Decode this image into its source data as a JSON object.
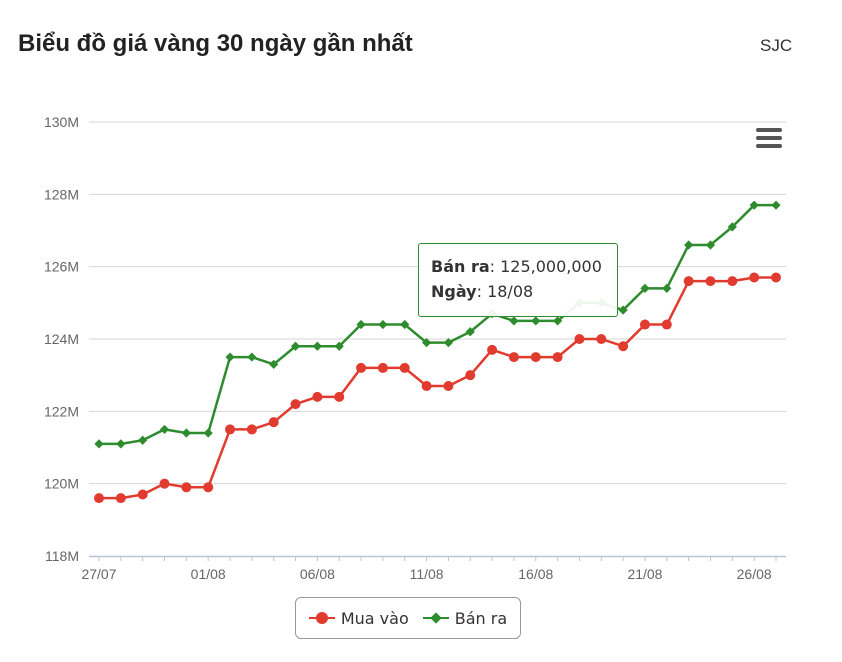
{
  "header": {
    "title": "Biểu đồ giá vàng 30 ngày gần nhất",
    "source": "SJC"
  },
  "tooltip": {
    "series_label": "Bán ra",
    "value": "125,000,000",
    "date_label": "Ngày",
    "date": "18/08"
  },
  "colors": {
    "buy": "#e03b2e",
    "sell": "#2e8b2e",
    "grid": "#d6d6d6",
    "axis": "#b8c4d6",
    "text": "#666666"
  },
  "chart_data": {
    "type": "line",
    "x": [
      "27/07",
      "28/07",
      "29/07",
      "30/07",
      "31/07",
      "01/08",
      "02/08",
      "03/08",
      "04/08",
      "05/08",
      "06/08",
      "07/08",
      "08/08",
      "09/08",
      "10/08",
      "11/08",
      "12/08",
      "13/08",
      "14/08",
      "15/08",
      "16/08",
      "17/08",
      "18/08",
      "19/08",
      "20/08",
      "21/08",
      "22/08",
      "23/08",
      "24/08",
      "25/08",
      "26/08",
      "27/08"
    ],
    "x_tick_labels": [
      "27/07",
      "01/08",
      "06/08",
      "11/08",
      "16/08",
      "21/08",
      "26/08"
    ],
    "y_tick_labels": [
      "118M",
      "120M",
      "122M",
      "124M",
      "126M",
      "128M",
      "130M"
    ],
    "ylim": [
      118000000,
      130000000
    ],
    "series": [
      {
        "name": "Mua vào",
        "values": [
          119600000,
          119600000,
          119700000,
          120000000,
          119900000,
          119900000,
          121500000,
          121500000,
          121700000,
          122200000,
          122400000,
          122400000,
          123200000,
          123200000,
          123200000,
          122700000,
          122700000,
          123000000,
          123700000,
          123500000,
          123500000,
          123500000,
          124000000,
          124000000,
          123800000,
          124400000,
          124400000,
          125600000,
          125600000,
          125600000,
          125700000,
          125700000
        ]
      },
      {
        "name": "Bán ra",
        "values": [
          121100000,
          121100000,
          121200000,
          121500000,
          121400000,
          121400000,
          123500000,
          123500000,
          123300000,
          123800000,
          123800000,
          123800000,
          124400000,
          124400000,
          124400000,
          123900000,
          123900000,
          124200000,
          124700000,
          124500000,
          124500000,
          124500000,
          125000000,
          125000000,
          124800000,
          125400000,
          125400000,
          126600000,
          126600000,
          127100000,
          127700000,
          127700000
        ]
      }
    ],
    "legend": [
      "Mua vào",
      "Bán ra"
    ],
    "grid": true,
    "legend_position": "bottom-center"
  }
}
